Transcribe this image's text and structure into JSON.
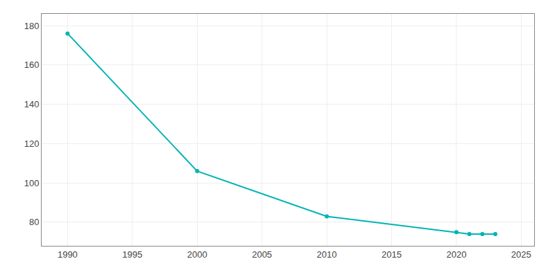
{
  "chart_data": {
    "type": "line",
    "x": [
      1990,
      2000,
      2010,
      2020,
      2021,
      2022,
      2023
    ],
    "values": [
      176,
      106,
      83,
      75,
      74,
      74,
      74
    ],
    "color": "#00b4b4",
    "marker": "circle",
    "xlim": [
      1988,
      2026
    ],
    "xticks": [
      1990,
      1995,
      2000,
      2005,
      2010,
      2015,
      2020,
      2025
    ],
    "ylim": [
      68,
      186
    ],
    "yticks": [
      80,
      100,
      120,
      140,
      160,
      180
    ],
    "grid": true
  }
}
